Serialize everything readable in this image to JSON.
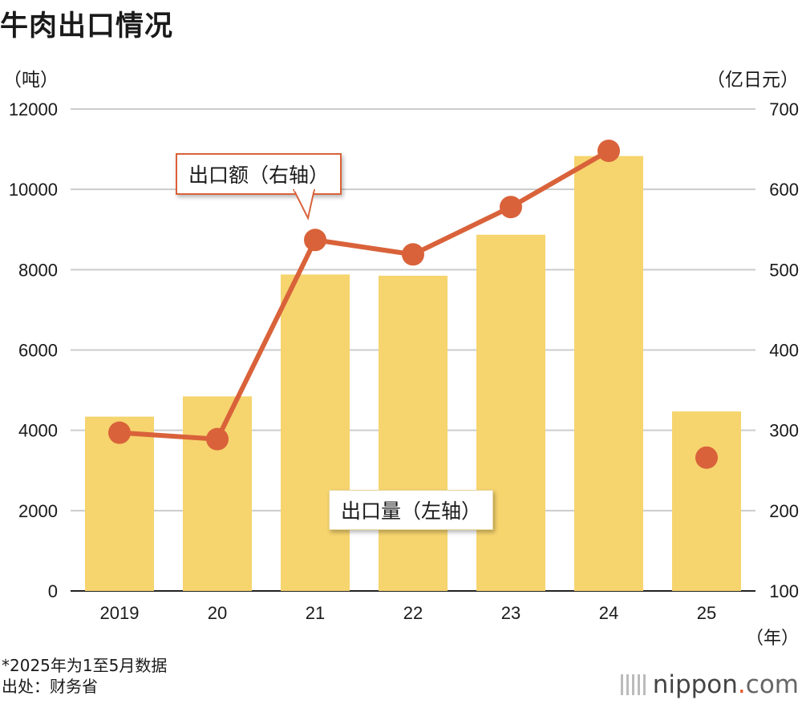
{
  "title": "牛肉出口情况",
  "left_unit": "（吨）",
  "right_unit": "（亿日元）",
  "x_unit": "（年）",
  "callout_line": "出口额（右轴）",
  "callout_bar": "出口量（左轴）",
  "footnote_1": "*2025年为1至5月数据",
  "footnote_2": "出处：财务省",
  "brand": {
    "name": "nippon",
    "dot": ".",
    "tld": "com"
  },
  "colors": {
    "bar": "#f6d46e",
    "line": "#d9623a",
    "grid": "#cccccc",
    "axis": "#222222"
  },
  "chart_data": {
    "type": "bar+line",
    "title": "牛肉出口情况",
    "categories": [
      "2019",
      "20",
      "21",
      "22",
      "23",
      "24",
      "25"
    ],
    "series": [
      {
        "name": "出口量（左轴）",
        "type": "bar",
        "axis": "left",
        "values": [
          4340,
          4845,
          7880,
          7850,
          8870,
          10830,
          4470
        ]
      },
      {
        "name": "出口额（右轴）",
        "type": "line",
        "axis": "right",
        "values": [
          297,
          289,
          537,
          519,
          578,
          648,
          266
        ],
        "connected": [
          true,
          true,
          true,
          true,
          true,
          true,
          false
        ]
      }
    ],
    "left_axis": {
      "label": "（吨）",
      "ylim": [
        0,
        12000
      ],
      "ticks": [
        "0",
        "2000",
        "4000",
        "6000",
        "8000",
        "10000",
        "12000"
      ]
    },
    "right_axis": {
      "label": "（亿日元）",
      "ylim": [
        100,
        700
      ],
      "ticks": [
        "100",
        "200",
        "300",
        "400",
        "500",
        "600",
        "700"
      ]
    },
    "xlabel": "（年）",
    "grid": true
  }
}
